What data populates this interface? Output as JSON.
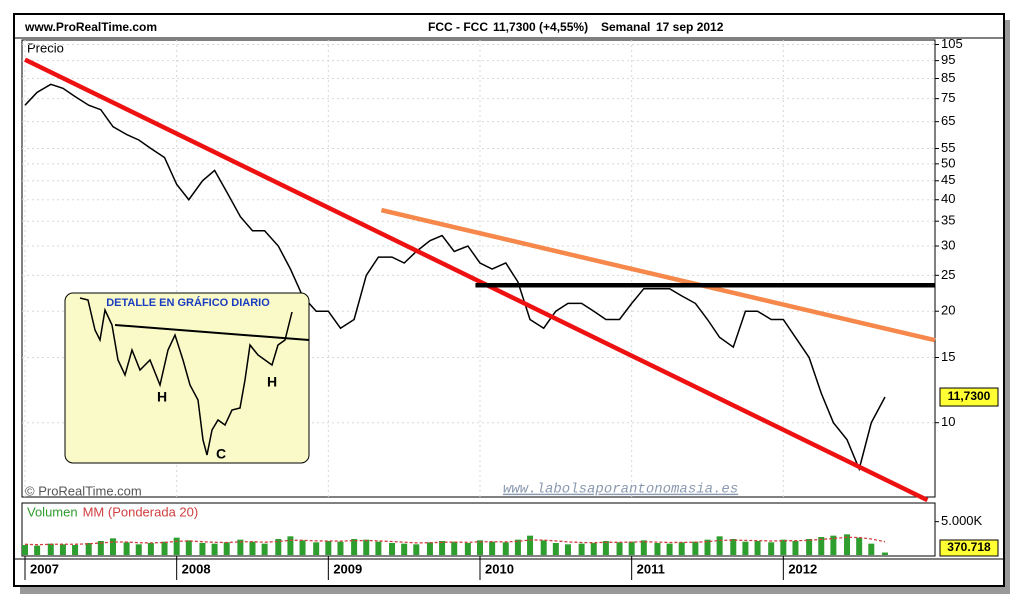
{
  "header": {
    "site": "www.ProRealTime.com",
    "symbol": "FCC - FCC",
    "quote": "11,7300 (+4,55%)",
    "period": "Semanal",
    "date": "17 sep 2012"
  },
  "watermarks": {
    "copyright": "© ProRealTime.com",
    "url": "www.labolsaporantonomasia.es"
  },
  "inset": {
    "title": "DETALLE EN GRÁFICO DIARIO",
    "labels": [
      "H",
      "C",
      "H"
    ]
  },
  "chart_data": [
    {
      "type": "line",
      "title": "Precio",
      "color": "#000000",
      "log_scale": true,
      "grid": true,
      "x": [
        2007.0,
        2007.08,
        2007.17,
        2007.25,
        2007.33,
        2007.42,
        2007.5,
        2007.58,
        2007.67,
        2007.75,
        2007.83,
        2007.92,
        2008.0,
        2008.08,
        2008.17,
        2008.25,
        2008.33,
        2008.42,
        2008.5,
        2008.58,
        2008.67,
        2008.75,
        2008.83,
        2008.92,
        2009.0,
        2009.08,
        2009.17,
        2009.25,
        2009.33,
        2009.42,
        2009.5,
        2009.58,
        2009.67,
        2009.75,
        2009.83,
        2009.92,
        2010.0,
        2010.08,
        2010.17,
        2010.25,
        2010.33,
        2010.42,
        2010.5,
        2010.58,
        2010.67,
        2010.75,
        2010.83,
        2010.92,
        2011.0,
        2011.08,
        2011.17,
        2011.25,
        2011.33,
        2011.42,
        2011.5,
        2011.58,
        2011.67,
        2011.75,
        2011.83,
        2011.92,
        2012.0,
        2012.08,
        2012.17,
        2012.25,
        2012.33,
        2012.42,
        2012.5,
        2012.58,
        2012.67
      ],
      "values": [
        72,
        78,
        82,
        80,
        76,
        72,
        70,
        63,
        60,
        58,
        55,
        52,
        44,
        40,
        45,
        48,
        42,
        36,
        33,
        33,
        30,
        26,
        22,
        20,
        20,
        18,
        19,
        25,
        28,
        28,
        27,
        29,
        31,
        32,
        29,
        30,
        27,
        26,
        27,
        24,
        19,
        18,
        20,
        21,
        21,
        20,
        19,
        19,
        21,
        23,
        23,
        23,
        22,
        21,
        19,
        17,
        16,
        20,
        20,
        19,
        19,
        17,
        15,
        12,
        10,
        9,
        7.5,
        10,
        11.73
      ],
      "xlim": [
        2007,
        2013
      ],
      "xticks": [
        2007,
        2008,
        2009,
        2010,
        2011,
        2012
      ],
      "ylim": [
        6.3,
        108
      ],
      "yticks": [
        105,
        95,
        85,
        75,
        65,
        55,
        50,
        45,
        40,
        35,
        30,
        25,
        20,
        15,
        10
      ],
      "last_price": {
        "value": 11.73,
        "label": "11,7300"
      },
      "trendlines": [
        {
          "color": "#ee1111",
          "x": [
            2007,
            2012.95
          ],
          "y": [
            95.6,
            6.18
          ]
        },
        {
          "color": "#f5884a",
          "x": [
            2009.35,
            2013
          ],
          "y": [
            37.5,
            16.7
          ]
        },
        {
          "color": "#000000",
          "x": [
            2009.97,
            2013
          ],
          "y": [
            23.5,
            23.5
          ]
        }
      ]
    },
    {
      "type": "bar",
      "xlim": [
        2007,
        2013
      ],
      "x": [
        2007.0,
        2007.08,
        2007.17,
        2007.25,
        2007.33,
        2007.42,
        2007.5,
        2007.58,
        2007.67,
        2007.75,
        2007.83,
        2007.92,
        2008.0,
        2008.08,
        2008.17,
        2008.25,
        2008.33,
        2008.42,
        2008.5,
        2008.58,
        2008.67,
        2008.75,
        2008.83,
        2008.92,
        2009.0,
        2009.08,
        2009.17,
        2009.25,
        2009.33,
        2009.42,
        2009.5,
        2009.58,
        2009.67,
        2009.75,
        2009.83,
        2009.92,
        2010.0,
        2010.08,
        2010.17,
        2010.25,
        2010.33,
        2010.42,
        2010.5,
        2010.58,
        2010.67,
        2010.75,
        2010.83,
        2010.92,
        2011.0,
        2011.08,
        2011.17,
        2011.25,
        2011.33,
        2011.42,
        2011.5,
        2011.58,
        2011.67,
        2011.75,
        2011.83,
        2011.92,
        2012.0,
        2012.08,
        2012.17,
        2012.25,
        2012.33,
        2012.42,
        2012.5,
        2012.58,
        2012.67
      ],
      "series": [
        {
          "name": "Volumen",
          "color": "#2e9e2e",
          "values": [
            1500000,
            1400000,
            1700000,
            1600000,
            1500000,
            1800000,
            2100000,
            2500000,
            1900000,
            1600000,
            1800000,
            2000000,
            2600000,
            2200000,
            1800000,
            1700000,
            1900000,
            2300000,
            2000000,
            1700000,
            2400000,
            2800000,
            2200000,
            1900000,
            2100000,
            2000000,
            2400000,
            2300000,
            2000000,
            1800000,
            1700000,
            1600000,
            1900000,
            2100000,
            2000000,
            1800000,
            2200000,
            2000000,
            1900000,
            2300000,
            2900000,
            2200000,
            1800000,
            1600000,
            1700000,
            1800000,
            2100000,
            1900000,
            2000000,
            2200000,
            1800000,
            1700000,
            1900000,
            2000000,
            2300000,
            2800000,
            2400000,
            2000000,
            2100000,
            1900000,
            2300000,
            2100000,
            2400000,
            2700000,
            2900000,
            3100000,
            2600000,
            1700000,
            370718
          ]
        },
        {
          "name": "MM (Ponderada 20)",
          "color": "#d04040",
          "values": [
            1600000,
            1550000,
            1600000,
            1620000,
            1600000,
            1680000,
            1800000,
            1950000,
            1950000,
            1850000,
            1820000,
            1880000,
            2050000,
            2100000,
            2000000,
            1900000,
            1880000,
            1980000,
            2000000,
            1920000,
            2020000,
            2200000,
            2200000,
            2120000,
            2100000,
            2080000,
            2150000,
            2180000,
            2120000,
            2020000,
            1920000,
            1820000,
            1840000,
            1900000,
            1930000,
            1900000,
            1980000,
            1990000,
            1960000,
            2040000,
            2250000,
            2240000,
            2120000,
            1960000,
            1880000,
            1850000,
            1900000,
            1900000,
            1930000,
            1990000,
            1940000,
            1880000,
            1890000,
            1920000,
            2000000,
            2180000,
            2240000,
            2190000,
            2160000,
            2100000,
            2150000,
            2140000,
            2210000,
            2340000,
            2480000,
            2650000,
            2630000,
            2400000,
            2000000
          ]
        }
      ],
      "ylim": [
        0,
        7500000
      ],
      "yticks": [
        {
          "value": 5000000,
          "label": "5.000K"
        }
      ],
      "last_volume": {
        "value": 370718,
        "label": "370.718"
      }
    }
  ]
}
